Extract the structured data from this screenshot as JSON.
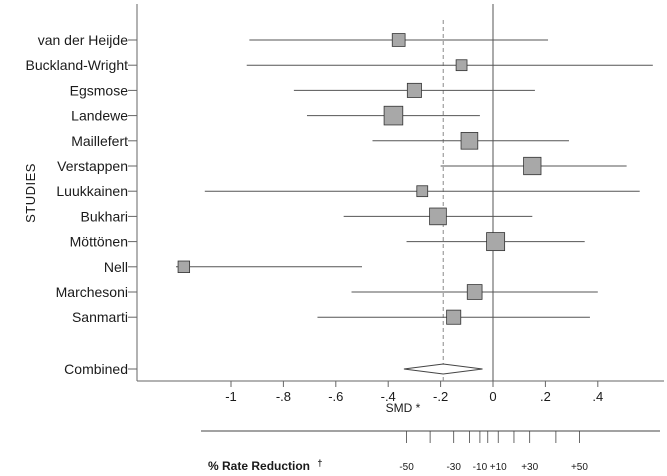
{
  "chart_data": {
    "type": "forest",
    "ylabel": "STUDIES",
    "xlabel": "SMD *",
    "xlim": [
      -1.21,
      0.63
    ],
    "xticks": [
      -1,
      -0.8,
      -0.6,
      -0.4,
      -0.2,
      0,
      0.2,
      0.4
    ],
    "xtick_labels": [
      "-1",
      "-.8",
      "-.6",
      "-.4",
      "-.2",
      "0",
      ".2",
      ".4"
    ],
    "combined_estimate_line": -0.19,
    "studies": [
      {
        "name": "van der Heijde",
        "smd": -0.36,
        "ci": [
          -0.93,
          0.21
        ],
        "weight": 0.45
      },
      {
        "name": "Buckland-Wright",
        "smd": -0.12,
        "ci": [
          -0.94,
          0.61
        ],
        "weight": 0.3
      },
      {
        "name": "Egsmose",
        "smd": -0.3,
        "ci": [
          -0.76,
          0.16
        ],
        "weight": 0.55
      },
      {
        "name": "Landewe",
        "smd": -0.38,
        "ci": [
          -0.71,
          -0.05
        ],
        "weight": 0.9
      },
      {
        "name": "Maillefert",
        "smd": -0.09,
        "ci": [
          -0.46,
          0.29
        ],
        "weight": 0.75
      },
      {
        "name": "Verstappen",
        "smd": 0.15,
        "ci": [
          -0.2,
          0.51
        ],
        "weight": 0.8
      },
      {
        "name": "Luukkainen",
        "smd": -0.27,
        "ci": [
          -1.1,
          0.56
        ],
        "weight": 0.3
      },
      {
        "name": "Bukhari",
        "smd": -0.21,
        "ci": [
          -0.57,
          0.15
        ],
        "weight": 0.75
      },
      {
        "name": "Möttönen",
        "smd": 0.01,
        "ci": [
          -0.33,
          0.35
        ],
        "weight": 0.85
      },
      {
        "name": "Nell",
        "smd": -1.18,
        "ci": [
          -1.26,
          -0.5
        ],
        "weight": 0.35
      },
      {
        "name": "Marchesoni",
        "smd": -0.07,
        "ci": [
          -0.54,
          0.4
        ],
        "weight": 0.6
      },
      {
        "name": "Sanmarti",
        "smd": -0.15,
        "ci": [
          -0.67,
          0.37
        ],
        "weight": 0.55
      }
    ],
    "combined": {
      "name": "Combined",
      "smd": -0.19,
      "ci": [
        -0.34,
        -0.04
      ]
    },
    "rate_reduction": {
      "title": "% Rate Reduction",
      "title_mark": "†",
      "tick_labels": [
        "-50",
        "-30",
        "-10",
        "+10",
        "+30",
        "+50"
      ],
      "tick_smd": [
        -0.33,
        -0.24,
        -0.15,
        -0.09,
        -0.05,
        -0.02,
        0.02,
        0.08,
        0.14,
        0.24,
        0.33
      ]
    }
  }
}
